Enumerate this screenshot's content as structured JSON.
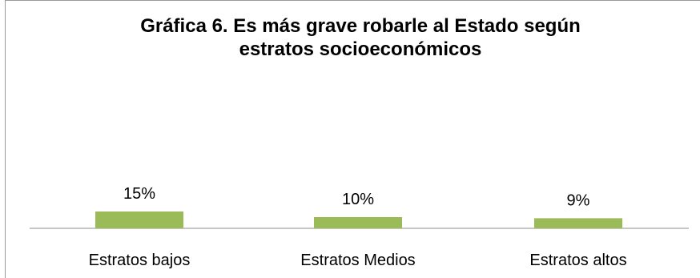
{
  "chart_data": {
    "type": "bar",
    "title": "Gráfica 6. Es más grave robarle al Estado según estratos socioeconómicos",
    "categories": [
      "Estratos bajos",
      "Estratos Medios",
      "Estratos altos"
    ],
    "values": [
      15,
      10,
      9
    ],
    "data_labels": [
      "15%",
      "10%",
      "9%"
    ],
    "ylabel": "",
    "xlabel": "",
    "bar_color": "#9bbb59",
    "grid": false,
    "legend": "none"
  }
}
